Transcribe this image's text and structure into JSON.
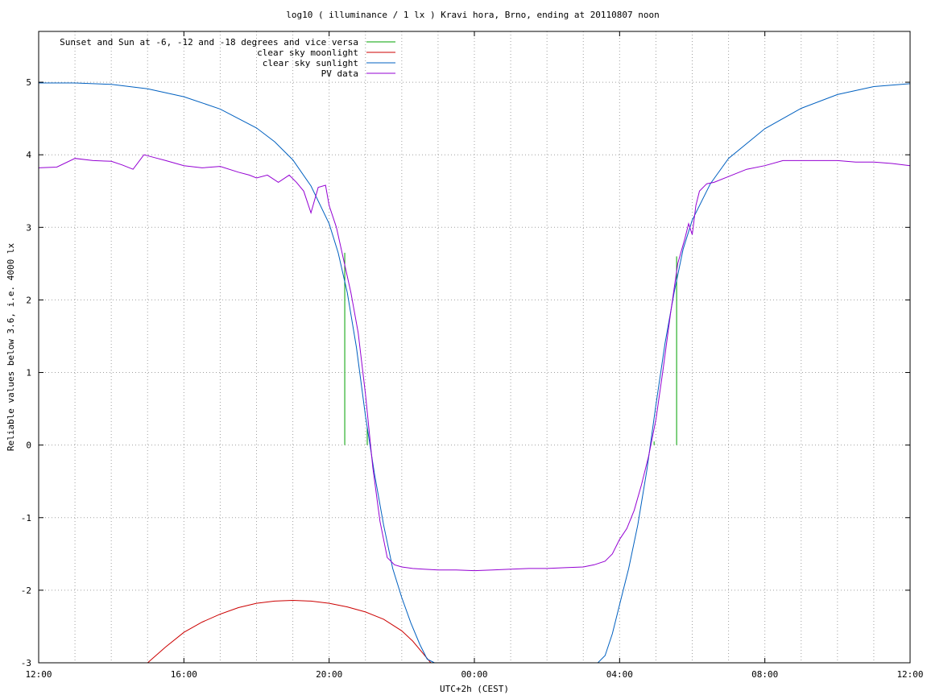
{
  "chart_data": {
    "type": "line",
    "title": "log10 ( illuminance / 1 lx ) Kravi hora, Brno, ending at 20110807 noon",
    "xlabel": "UTC+2h (CEST)",
    "ylabel": "Reliable values below 3.6, i.e. 4000 lx",
    "xlim": [
      12,
      36
    ],
    "ylim": [
      -3,
      5.7
    ],
    "x_ticks": [
      {
        "value": 12,
        "label": "12:00"
      },
      {
        "value": 16,
        "label": "16:00"
      },
      {
        "value": 20,
        "label": "20:00"
      },
      {
        "value": 24,
        "label": "00:00"
      },
      {
        "value": 28,
        "label": "04:00"
      },
      {
        "value": 32,
        "label": "08:00"
      },
      {
        "value": 36,
        "label": "12:00"
      }
    ],
    "y_ticks": [
      {
        "value": -3,
        "label": "-3"
      },
      {
        "value": -2,
        "label": "-2"
      },
      {
        "value": -1,
        "label": "-1"
      },
      {
        "value": 0,
        "label": "0"
      },
      {
        "value": 1,
        "label": "1"
      },
      {
        "value": 2,
        "label": "2"
      },
      {
        "value": 3,
        "label": "3"
      },
      {
        "value": 4,
        "label": "4"
      },
      {
        "value": 5,
        "label": "5"
      }
    ],
    "grid": true,
    "legend_position": "top-left",
    "series": [
      {
        "name": "Sunset and Sun at -6, -12 and -18 degrees and vice versa",
        "color": "#00a000",
        "kind": "vertical-markers",
        "markers": [
          {
            "x": 20.43,
            "y_top": 2.65
          },
          {
            "x": 21.05,
            "y_top": 0.25
          },
          {
            "x": 21.83,
            "y_top": 0
          },
          {
            "x": 22.8,
            "y_top": 0
          },
          {
            "x": 27.22,
            "y_top": 0
          },
          {
            "x": 28.17,
            "y_top": 0
          },
          {
            "x": 28.95,
            "y_top": 0.05
          },
          {
            "x": 29.57,
            "y_top": 2.6
          }
        ]
      },
      {
        "name": "clear sky moonlight",
        "color": "#cc0000",
        "x": [
          15.0,
          15.5,
          16.0,
          16.5,
          17.0,
          17.5,
          18.0,
          18.5,
          19.0,
          19.5,
          20.0,
          20.5,
          21.0,
          21.5,
          22.0,
          22.3,
          22.6,
          22.8
        ],
        "y": [
          -3.0,
          -2.78,
          -2.58,
          -2.44,
          -2.33,
          -2.24,
          -2.18,
          -2.15,
          -2.14,
          -2.15,
          -2.18,
          -2.23,
          -2.3,
          -2.4,
          -2.56,
          -2.7,
          -2.88,
          -3.0
        ]
      },
      {
        "name": "clear sky sunlight",
        "color": "#0060c0",
        "x": [
          12.0,
          13.0,
          14.0,
          15.0,
          16.0,
          17.0,
          18.0,
          18.5,
          19.0,
          19.5,
          20.0,
          20.25,
          20.5,
          20.75,
          21.0,
          21.25,
          21.5,
          21.75,
          22.0,
          22.25,
          22.5,
          22.7,
          22.9,
          27.4,
          27.6,
          27.8,
          28.0,
          28.25,
          28.5,
          28.75,
          29.0,
          29.25,
          29.5,
          29.75,
          30.0,
          30.5,
          31.0,
          32.0,
          33.0,
          34.0,
          35.0,
          36.0
        ],
        "y": [
          4.99,
          4.99,
          4.97,
          4.91,
          4.8,
          4.63,
          4.37,
          4.18,
          3.93,
          3.57,
          3.05,
          2.65,
          2.1,
          1.35,
          0.4,
          -0.4,
          -1.1,
          -1.7,
          -2.1,
          -2.45,
          -2.75,
          -2.95,
          -3.1,
          -3.1,
          -2.9,
          -2.6,
          -2.2,
          -1.7,
          -1.1,
          -0.35,
          0.55,
          1.4,
          2.1,
          2.7,
          3.1,
          3.6,
          3.95,
          4.36,
          4.64,
          4.83,
          4.94,
          4.98
        ]
      },
      {
        "name": "PV data",
        "color": "#9400d3",
        "x": [
          12.0,
          12.5,
          13.0,
          13.5,
          14.0,
          14.3,
          14.6,
          14.9,
          15.2,
          15.5,
          16.0,
          16.5,
          17.0,
          17.5,
          17.8,
          18.0,
          18.3,
          18.6,
          18.9,
          19.1,
          19.3,
          19.5,
          19.7,
          19.9,
          20.0,
          20.2,
          20.4,
          20.6,
          20.8,
          21.0,
          21.2,
          21.4,
          21.6,
          21.8,
          22.0,
          22.3,
          22.6,
          23.0,
          23.5,
          24.0,
          24.5,
          25.0,
          25.5,
          26.0,
          26.5,
          27.0,
          27.3,
          27.6,
          27.8,
          28.0,
          28.2,
          28.4,
          28.6,
          28.8,
          29.0,
          29.2,
          29.4,
          29.6,
          29.8,
          29.9,
          30.0,
          30.1,
          30.2,
          30.4,
          30.6,
          31.0,
          31.5,
          32.0,
          32.5,
          33.0,
          33.5,
          34.0,
          34.5,
          35.0,
          35.5,
          36.0
        ],
        "y": [
          3.82,
          3.83,
          3.95,
          3.92,
          3.91,
          3.86,
          3.8,
          4.0,
          3.96,
          3.92,
          3.85,
          3.82,
          3.84,
          3.76,
          3.72,
          3.68,
          3.72,
          3.62,
          3.72,
          3.62,
          3.5,
          3.2,
          3.55,
          3.58,
          3.3,
          3.0,
          2.55,
          2.1,
          1.55,
          0.7,
          -0.3,
          -1.05,
          -1.55,
          -1.65,
          -1.68,
          -1.7,
          -1.71,
          -1.72,
          -1.72,
          -1.73,
          -1.72,
          -1.71,
          -1.7,
          -1.7,
          -1.69,
          -1.68,
          -1.65,
          -1.6,
          -1.5,
          -1.3,
          -1.15,
          -0.9,
          -0.55,
          -0.15,
          0.35,
          1.05,
          1.8,
          2.5,
          2.85,
          3.05,
          2.9,
          3.3,
          3.5,
          3.6,
          3.62,
          3.7,
          3.8,
          3.85,
          3.92,
          3.92,
          3.92,
          3.92,
          3.9,
          3.9,
          3.88,
          3.85
        ]
      }
    ]
  }
}
